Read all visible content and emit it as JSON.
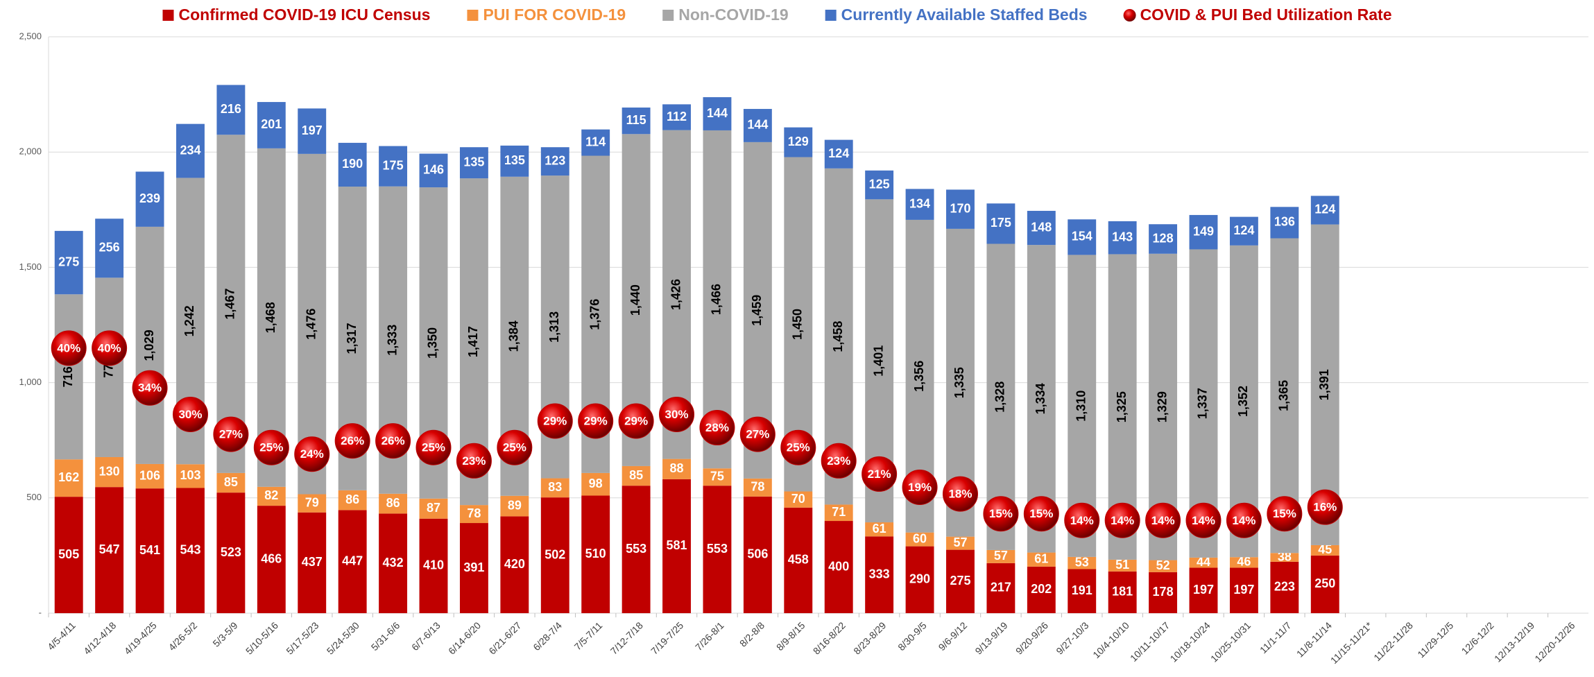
{
  "chart_data": {
    "type": "bar",
    "stacked": true,
    "categories": [
      "4/5-4/11",
      "4/12-4/18",
      "4/19-4/25",
      "4/26-5/2",
      "5/3-5/9",
      "5/10-5/16",
      "5/17-5/23",
      "5/24-5/30",
      "5/31-6/6",
      "6/7-6/13",
      "6/14-6/20",
      "6/21-6/27",
      "6/28-7/4",
      "7/5-7/11",
      "7/12-7/18",
      "7/19-7/25",
      "7/26-8/1",
      "8/2-8/8",
      "8/9-8/15",
      "8/16-8/22",
      "8/23-8/29",
      "8/30-9/5",
      "9/6-9/12",
      "9/13-9/19",
      "9/20-9/26",
      "9/27-10/3",
      "10/4-10/10",
      "10/11-10/17",
      "10/18-10/24",
      "10/25-10/31",
      "11/1-11/7",
      "11/8-11/14",
      "11/15-11/21*",
      "11/22-11/28",
      "11/29-12/5",
      "12/6-12/2",
      "12/13-12/19",
      "12/20-12/26"
    ],
    "series": [
      {
        "name": "Confirmed COVID-19 ICU Census",
        "color": "#c00000",
        "values": [
          505,
          547,
          541,
          543,
          523,
          466,
          437,
          447,
          432,
          410,
          391,
          420,
          502,
          510,
          553,
          581,
          553,
          506,
          458,
          400,
          333,
          290,
          275,
          217,
          202,
          191,
          181,
          178,
          197,
          197,
          223,
          250,
          null,
          null,
          null,
          null,
          null,
          null
        ]
      },
      {
        "name": "PUI FOR COVID-19",
        "color": "#f4913d",
        "values": [
          162,
          130,
          106,
          103,
          85,
          82,
          79,
          86,
          86,
          87,
          78,
          89,
          83,
          98,
          85,
          88,
          75,
          78,
          70,
          71,
          61,
          60,
          57,
          57,
          61,
          53,
          51,
          52,
          44,
          46,
          38,
          45,
          null,
          null,
          null,
          null,
          null,
          null
        ]
      },
      {
        "name": "Non-COVID-19",
        "color": "#a6a6a6",
        "values": [
          716,
          778,
          1029,
          1242,
          1467,
          1468,
          1476,
          1317,
          1333,
          1350,
          1417,
          1384,
          1313,
          1376,
          1440,
          1426,
          1466,
          1459,
          1450,
          1458,
          1401,
          1356,
          1335,
          1328,
          1334,
          1310,
          1325,
          1329,
          1337,
          1352,
          1365,
          1391,
          null,
          null,
          null,
          null,
          null,
          null
        ],
        "value_labels": [
          "716",
          "778",
          "1,029",
          "1,242",
          "1,467",
          "1,468",
          "1,476",
          "1,317",
          "1,333",
          "1,350",
          "1,417",
          "1,384",
          "1,313",
          "1,376",
          "1,440",
          "1,426",
          "1,466",
          "1,459",
          "1,450",
          "1,458",
          "1,401",
          "1,356",
          "1,335",
          "1,328",
          "1,334",
          "1,310",
          "1,325",
          "1,329",
          "1,337",
          "1,352",
          "1,365",
          "1,391",
          null,
          null,
          null,
          null,
          null,
          null
        ]
      },
      {
        "name": "Currently Available Staffed Beds",
        "color": "#4472c4",
        "values": [
          275,
          256,
          239,
          234,
          216,
          201,
          197,
          190,
          175,
          146,
          135,
          135,
          123,
          114,
          115,
          112,
          144,
          144,
          129,
          124,
          125,
          134,
          170,
          175,
          148,
          154,
          143,
          128,
          149,
          124,
          136,
          124,
          null,
          null,
          null,
          null,
          null,
          null
        ]
      },
      {
        "name": "COVID & PUI Bed Utilization Rate",
        "color": "#c00000",
        "axis": "y2",
        "values": [
          40,
          40,
          34,
          30,
          27,
          25,
          24,
          26,
          26,
          25,
          23,
          25,
          29,
          29,
          29,
          30,
          28,
          27,
          25,
          23,
          21,
          19,
          18,
          15,
          15,
          14,
          14,
          14,
          14,
          14,
          15,
          16,
          null,
          null,
          null,
          null,
          null,
          null
        ],
        "value_labels": [
          "40%",
          "40%",
          "34%",
          "30%",
          "27%",
          "25%",
          "24%",
          "26%",
          "26%",
          "25%",
          "23%",
          "25%",
          "29%",
          "29%",
          "29%",
          "30%",
          "28%",
          "27%",
          "25%",
          "23%",
          "21%",
          "19%",
          "18%",
          "15%",
          "15%",
          "14%",
          "14%",
          "14%",
          "14%",
          "14%",
          "15%",
          "16%",
          null,
          null,
          null,
          null,
          null,
          null
        ]
      }
    ],
    "ylim": [
      0,
      2500
    ],
    "yticks": [
      {
        "value": 0,
        "label": "-"
      },
      500,
      {
        "value": 1000,
        "label": "1,000"
      },
      {
        "value": 1500,
        "label": "1,500"
      },
      {
        "value": 2000,
        "label": "2,000"
      },
      {
        "value": 2500,
        "label": "2,500"
      }
    ],
    "y2lim": [
      0,
      87
    ],
    "grid": true,
    "legend": "top"
  }
}
